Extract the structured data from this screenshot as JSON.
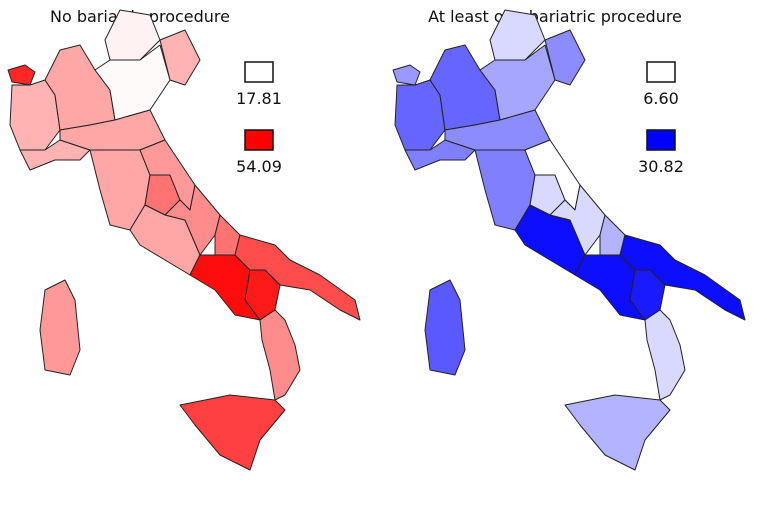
{
  "maps": [
    {
      "title": "No bariatric procedure",
      "low_color": "#ffffff",
      "high_color": "#ff0000",
      "legend": [
        {
          "label": "17.81"
        },
        {
          "label": "54.09"
        }
      ]
    },
    {
      "title": "At least one bariatric procedure",
      "low_color": "#ffffff",
      "high_color": "#0000ff",
      "legend": [
        {
          "label": "6.60"
        },
        {
          "label": "30.82"
        }
      ]
    }
  ]
}
